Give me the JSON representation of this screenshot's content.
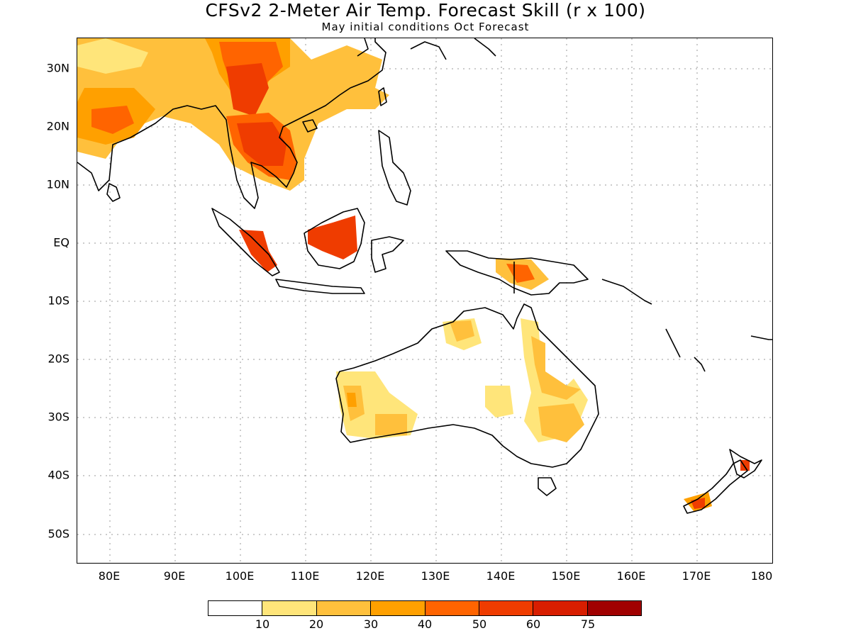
{
  "title": "CFSv2 2-Meter Air Temp. Forecast Skill (r x 100)",
  "subtitle": "May initial conditions  Oct Forecast",
  "lat_labels": [
    "30N",
    "20N",
    "10N",
    "EQ",
    "10S",
    "20S",
    "30S",
    "40S",
    "50S"
  ],
  "lon_labels": [
    "80E",
    "90E",
    "100E",
    "110E",
    "120E",
    "130E",
    "140E",
    "150E",
    "160E",
    "170E",
    "180"
  ],
  "colorbar": {
    "colors": [
      "#ffffff",
      "#ffe57a",
      "#ffc03c",
      "#ffa000",
      "#ff6400",
      "#ef3c00",
      "#d81e00",
      "#a00000"
    ],
    "labels": [
      "10",
      "20",
      "30",
      "40",
      "50",
      "60",
      "75"
    ]
  }
}
